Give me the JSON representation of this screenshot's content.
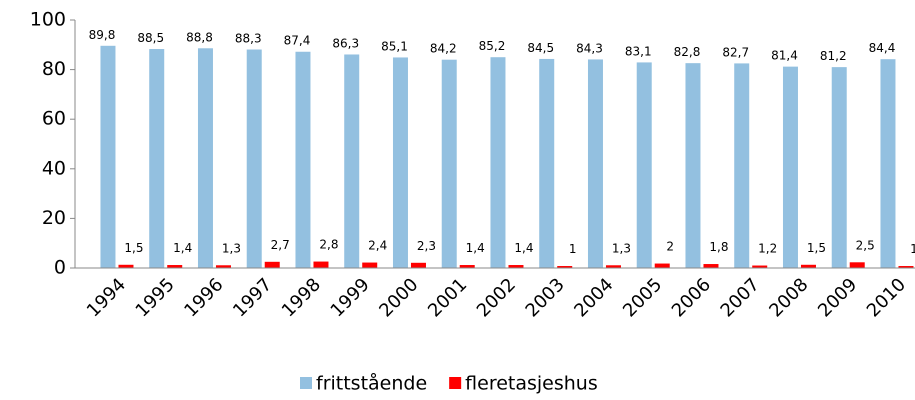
{
  "chart_data": {
    "type": "bar",
    "categories": [
      "1994",
      "1995",
      "1996",
      "1997",
      "1998",
      "1999",
      "2000",
      "2001",
      "2002",
      "2003",
      "2004",
      "2005",
      "2006",
      "2007",
      "2008",
      "2009",
      "2010"
    ],
    "series": [
      {
        "name": "frittstående",
        "color": "#93c0e0",
        "values": [
          89.8,
          88.5,
          88.8,
          88.3,
          87.4,
          86.3,
          85.1,
          84.2,
          85.2,
          84.5,
          84.3,
          83.1,
          82.8,
          82.7,
          81.4,
          81.2,
          84.4
        ],
        "value_labels": [
          "89,8",
          "88,5",
          "88,8",
          "88,3",
          "87,4",
          "86,3",
          "85,1",
          "84,2",
          "85,2",
          "84,5",
          "84,3",
          "83,1",
          "82,8",
          "82,7",
          "81,4",
          "81,2",
          "84,4"
        ]
      },
      {
        "name": "fleretasjeshus",
        "color": "#ff0000",
        "values": [
          1.5,
          1.4,
          1.3,
          2.7,
          2.8,
          2.4,
          2.3,
          1.4,
          1.4,
          1,
          1.3,
          2,
          1.8,
          1.2,
          1.5,
          2.5,
          1
        ],
        "value_labels": [
          "1,5",
          "1,4",
          "1,3",
          "2,7",
          "2,8",
          "2,4",
          "2,3",
          "1,4",
          "1,4",
          "1",
          "1,3",
          "2",
          "1,8",
          "1,2",
          "1,5",
          "2,5",
          "1"
        ]
      }
    ],
    "ylim": [
      0,
      100
    ],
    "yticks": [
      0,
      20,
      40,
      60,
      80,
      100
    ],
    "legend": "bottom"
  }
}
